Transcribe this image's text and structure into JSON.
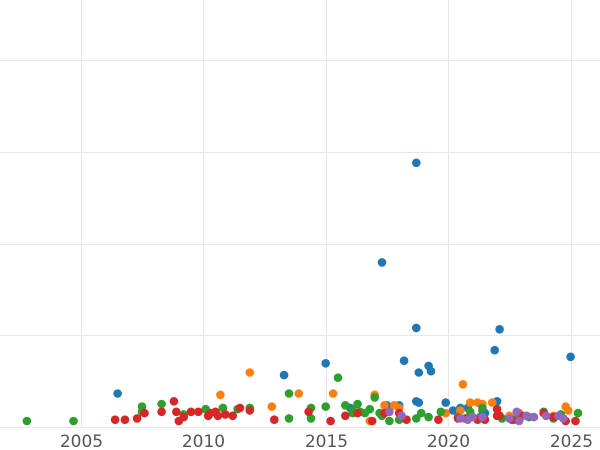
{
  "chart_data": {
    "type": "scatter",
    "title": "",
    "xlabel": "",
    "ylabel": "",
    "xlim": [
      2001.7,
      2026.2
    ],
    "ylim": [
      0,
      280
    ],
    "x_ticks": [
      2005,
      2010,
      2015,
      2020,
      2025
    ],
    "x_tick_labels": [
      "2005",
      "2010",
      "2015",
      "2020",
      "2025"
    ],
    "y_gridlines": [
      0,
      70,
      140,
      210,
      280
    ],
    "y_tick_labels_visible": false,
    "grid": true,
    "legend": "none",
    "series": [
      {
        "color": "#1f77b4",
        "points": [
          [
            2006.5,
            21
          ],
          [
            2013.3,
            35
          ],
          [
            2015.0,
            44
          ],
          [
            2018.2,
            46
          ],
          [
            2018.7,
            197
          ],
          [
            2018.8,
            37
          ],
          [
            2019.2,
            42
          ],
          [
            2019.3,
            38
          ],
          [
            2019.9,
            14
          ],
          [
            2020.5,
            10
          ],
          [
            2020.8,
            10
          ],
          [
            2021.4,
            8
          ],
          [
            2022.0,
            15
          ],
          [
            2021.9,
            54
          ],
          [
            2022.1,
            70
          ],
          [
            2017.3,
            121
          ],
          [
            2018.7,
            71
          ],
          [
            2025.0,
            49
          ],
          [
            2017.5,
            12
          ],
          [
            2018.0,
            12
          ],
          [
            2018.7,
            15
          ],
          [
            2018.8,
            14
          ],
          [
            2021.5,
            6
          ],
          [
            2020.2,
            8
          ],
          [
            2016.0,
            10
          ]
        ]
      },
      {
        "color": "#ff7f0e",
        "points": [
          [
            2010.7,
            20
          ],
          [
            2011.9,
            37
          ],
          [
            2012.8,
            11
          ],
          [
            2013.9,
            21
          ],
          [
            2015.3,
            21
          ],
          [
            2017.0,
            20
          ],
          [
            2017.4,
            12
          ],
          [
            2017.8,
            12
          ],
          [
            2018.0,
            10
          ],
          [
            2019.9,
            6
          ],
          [
            2020.6,
            28
          ],
          [
            2020.9,
            14
          ],
          [
            2021.2,
            14
          ],
          [
            2021.4,
            13
          ],
          [
            2021.8,
            14
          ],
          [
            2022.5,
            4
          ],
          [
            2023.2,
            4
          ],
          [
            2024.3,
            4
          ],
          [
            2024.8,
            11
          ],
          [
            2024.9,
            8
          ],
          [
            2016.8,
            0
          ],
          [
            2020.5,
            8
          ],
          [
            2022.9,
            6
          ]
        ]
      },
      {
        "color": "#2ca02c",
        "points": [
          [
            2002.8,
            0
          ],
          [
            2004.7,
            0
          ],
          [
            2007.5,
            11
          ],
          [
            2007.5,
            7
          ],
          [
            2008.3,
            13
          ],
          [
            2009.2,
            5
          ],
          [
            2010.1,
            9
          ],
          [
            2010.8,
            10
          ],
          [
            2011.4,
            9
          ],
          [
            2011.9,
            10
          ],
          [
            2013.5,
            21
          ],
          [
            2013.5,
            2
          ],
          [
            2014.4,
            2
          ],
          [
            2014.4,
            10
          ],
          [
            2015.0,
            11
          ],
          [
            2015.5,
            33
          ],
          [
            2015.8,
            12
          ],
          [
            2016.1,
            6
          ],
          [
            2016.3,
            13
          ],
          [
            2016.4,
            7
          ],
          [
            2016.6,
            6
          ],
          [
            2016.8,
            9
          ],
          [
            2017.0,
            18
          ],
          [
            2017.3,
            4
          ],
          [
            2017.6,
            0
          ],
          [
            2018.0,
            1
          ],
          [
            2018.7,
            2
          ],
          [
            2018.9,
            6
          ],
          [
            2019.2,
            3
          ],
          [
            2019.7,
            7
          ],
          [
            2020.4,
            3
          ],
          [
            2020.9,
            7
          ],
          [
            2021.3,
            3
          ],
          [
            2021.4,
            10
          ],
          [
            2022.2,
            2
          ],
          [
            2022.7,
            1
          ],
          [
            2023.3,
            3
          ],
          [
            2023.9,
            7
          ],
          [
            2024.3,
            2
          ],
          [
            2024.6,
            5
          ],
          [
            2025.3,
            6
          ],
          [
            2016.1,
            8
          ],
          [
            2017.2,
            6
          ]
        ]
      },
      {
        "color": "#d62728",
        "points": [
          [
            2006.4,
            1
          ],
          [
            2006.8,
            1
          ],
          [
            2007.3,
            2
          ],
          [
            2007.6,
            6
          ],
          [
            2008.3,
            7
          ],
          [
            2008.9,
            7
          ],
          [
            2008.8,
            15
          ],
          [
            2009.0,
            0
          ],
          [
            2009.2,
            3
          ],
          [
            2009.5,
            7
          ],
          [
            2009.8,
            7
          ],
          [
            2010.2,
            4
          ],
          [
            2010.3,
            6
          ],
          [
            2010.5,
            7
          ],
          [
            2010.6,
            4
          ],
          [
            2010.9,
            5
          ],
          [
            2011.2,
            4
          ],
          [
            2011.5,
            10
          ],
          [
            2011.9,
            8
          ],
          [
            2012.9,
            1
          ],
          [
            2014.3,
            7
          ],
          [
            2015.2,
            0
          ],
          [
            2015.8,
            4
          ],
          [
            2016.3,
            6
          ],
          [
            2016.9,
            0
          ],
          [
            2017.4,
            6
          ],
          [
            2018.0,
            6
          ],
          [
            2018.3,
            1
          ],
          [
            2019.6,
            1
          ],
          [
            2020.4,
            2
          ],
          [
            2020.7,
            2
          ],
          [
            2021.2,
            1
          ],
          [
            2021.5,
            1
          ],
          [
            2022.0,
            4
          ],
          [
            2022.1,
            4
          ],
          [
            2022.6,
            1
          ],
          [
            2023.0,
            4
          ],
          [
            2023.9,
            6
          ],
          [
            2024.3,
            3
          ],
          [
            2024.8,
            0
          ],
          [
            2025.2,
            0
          ],
          [
            2022.0,
            9
          ]
        ]
      },
      {
        "color": "#9467bd",
        "points": [
          [
            2017.6,
            7
          ],
          [
            2018.1,
            4
          ],
          [
            2020.5,
            2
          ],
          [
            2020.8,
            1
          ],
          [
            2021.0,
            3
          ],
          [
            2021.4,
            3
          ],
          [
            2022.5,
            2
          ],
          [
            2022.8,
            7
          ],
          [
            2023.2,
            4
          ],
          [
            2023.5,
            3
          ],
          [
            2024.0,
            4
          ],
          [
            2024.5,
            4
          ],
          [
            2024.7,
            2
          ],
          [
            2022.9,
            0
          ]
        ]
      }
    ]
  }
}
